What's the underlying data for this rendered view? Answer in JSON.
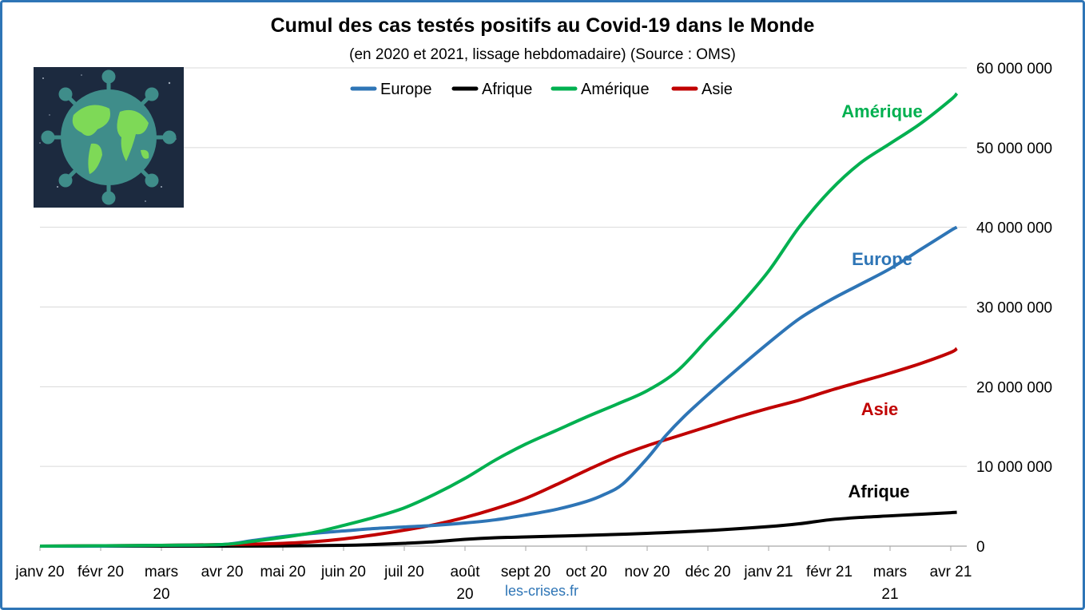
{
  "title": "Cumul des cas testés positifs au Covid-19 dans le Monde",
  "subtitle": "(en 2020 et 2021, lissage hebdomadaire) (Source : OMS)",
  "source_label": "les-crises.fr",
  "chart_data": {
    "type": "line",
    "title": "Cumul des cas testés positifs au Covid-19 dans le Monde",
    "subtitle": "(en 2020 et 2021, lissage hebdomadaire) (Source : OMS)",
    "x_tick_labels": [
      [
        "janv 20"
      ],
      [
        "févr 20"
      ],
      [
        "mars",
        "20"
      ],
      [
        "avr 20"
      ],
      [
        "mai 20"
      ],
      [
        "juin 20"
      ],
      [
        "juil 20"
      ],
      [
        "août",
        "20"
      ],
      [
        "sept 20"
      ],
      [
        "oct 20"
      ],
      [
        "nov 20"
      ],
      [
        "déc 20"
      ],
      [
        "janv 21"
      ],
      [
        "févr 21"
      ],
      [
        "mars",
        "21"
      ],
      [
        "avr 21"
      ]
    ],
    "xlim": [
      0,
      15.1
    ],
    "ylim": [
      0,
      60000000
    ],
    "y_ticks": [
      0,
      10000000,
      20000000,
      30000000,
      40000000,
      50000000,
      60000000
    ],
    "y_tick_labels": [
      "0",
      "10 000 000",
      "20 000 000",
      "30 000 000",
      "40 000 000",
      "50 000 000",
      "60 000 000"
    ],
    "y_axis_side": "right",
    "grid": "horizontal",
    "legend_position": "top",
    "series": [
      {
        "name": "Europe",
        "color": "#2e75b6",
        "end_label": "Europe",
        "x": [
          0,
          1,
          2,
          3,
          3.5,
          4,
          4.5,
          5,
          5.5,
          6,
          6.5,
          7,
          7.5,
          8,
          8.5,
          9,
          9.3,
          9.6,
          10,
          10.3,
          10.6,
          11,
          11.5,
          12,
          12.5,
          13,
          13.5,
          14,
          14.5,
          15,
          15.1
        ],
        "y": [
          0,
          0,
          100000,
          200000,
          700000,
          1200000,
          1600000,
          1900000,
          2200000,
          2400000,
          2600000,
          2900000,
          3300000,
          3900000,
          4600000,
          5600000,
          6500000,
          7800000,
          11000000,
          13800000,
          16200000,
          19000000,
          22300000,
          25500000,
          28500000,
          30800000,
          32800000,
          34800000,
          37200000,
          39600000,
          40000000
        ]
      },
      {
        "name": "Afrique",
        "color": "#000000",
        "end_label": "Afrique",
        "x": [
          0,
          3,
          4,
          5,
          5.5,
          6,
          6.5,
          7,
          7.5,
          8,
          8.5,
          9,
          10,
          11,
          12,
          12.5,
          13,
          13.5,
          14,
          14.5,
          15,
          15.1
        ],
        "y": [
          0,
          0,
          30000,
          100000,
          200000,
          350000,
          550000,
          850000,
          1050000,
          1150000,
          1250000,
          1350000,
          1600000,
          1950000,
          2450000,
          2800000,
          3300000,
          3600000,
          3800000,
          4000000,
          4200000,
          4250000
        ]
      },
      {
        "name": "Amérique",
        "color": "#00b050",
        "end_label": "Amérique",
        "x": [
          0,
          2,
          3,
          3.5,
          4,
          4.5,
          5,
          5.5,
          6,
          6.5,
          7,
          7.5,
          8,
          8.5,
          9,
          9.5,
          10,
          10.5,
          11,
          11.5,
          12,
          12.5,
          13,
          13.5,
          14,
          14.5,
          15,
          15.1
        ],
        "y": [
          0,
          100000,
          200000,
          600000,
          1100000,
          1700000,
          2600000,
          3600000,
          4800000,
          6500000,
          8500000,
          10800000,
          12800000,
          14500000,
          16200000,
          17800000,
          19500000,
          22000000,
          26000000,
          30000000,
          34500000,
          40000000,
          44500000,
          48000000,
          50500000,
          53000000,
          56000000,
          56800000
        ]
      },
      {
        "name": "Asie",
        "color": "#c00000",
        "end_label": "Asie",
        "x": [
          0,
          2,
          3,
          3.5,
          4,
          4.5,
          5,
          5.5,
          6,
          6.5,
          7,
          7.5,
          8,
          8.5,
          9,
          9.5,
          10,
          10.5,
          11,
          11.5,
          12,
          12.5,
          13,
          13.5,
          14,
          14.5,
          15,
          15.1
        ],
        "y": [
          0,
          100000,
          200000,
          250000,
          350000,
          550000,
          900000,
          1400000,
          2000000,
          2700000,
          3600000,
          4700000,
          6000000,
          7700000,
          9500000,
          11200000,
          12600000,
          13800000,
          15000000,
          16200000,
          17300000,
          18300000,
          19500000,
          20600000,
          21700000,
          22900000,
          24300000,
          24800000
        ]
      }
    ]
  }
}
